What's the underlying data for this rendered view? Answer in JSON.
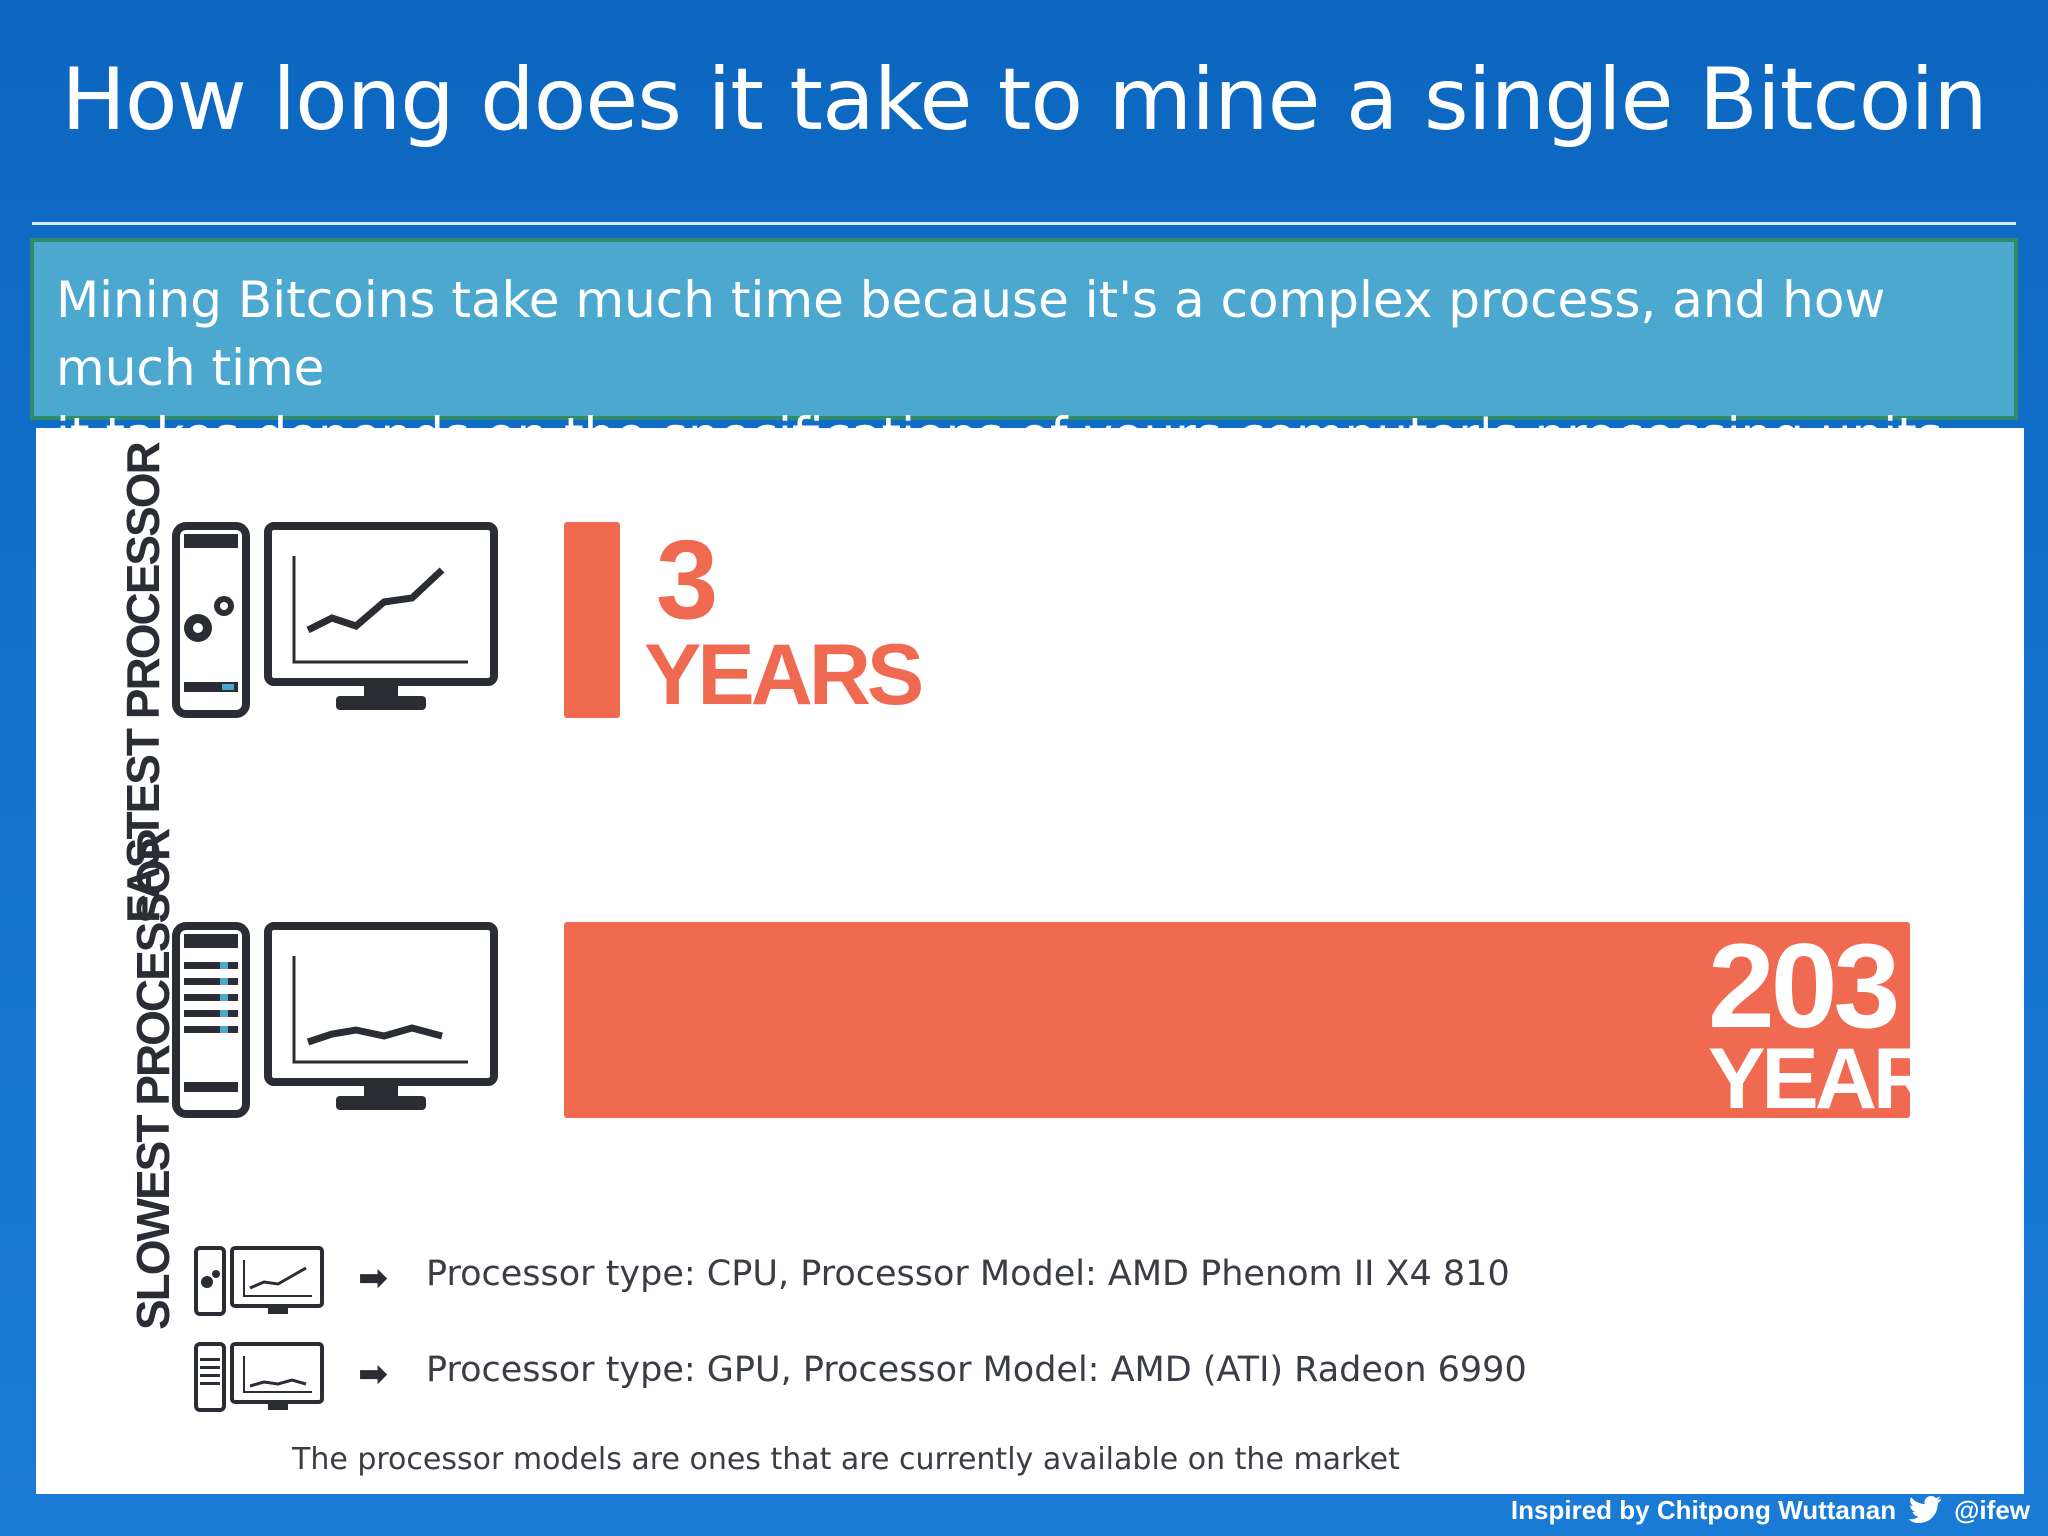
{
  "title": "How long does it take to mine a single Bitcoin",
  "callout_line1": "Mining Bitcoins take much time because it's a complex process, and how much time",
  "callout_line2": "it takes depends on the specifications of yours computer's processing units",
  "chart_data": {
    "type": "bar",
    "orientation": "horizontal",
    "categories": [
      "FASTEST PROCESSOR",
      "SLOWEST PROCESSOR"
    ],
    "values": [
      3,
      203
    ],
    "value_labels": [
      "3",
      "203"
    ],
    "unit_label": "YEARS",
    "xlim": [
      0,
      203
    ],
    "grid": false,
    "bar_color": "#f06a52"
  },
  "legend": [
    {
      "icon": "fast-computer-icon",
      "text": "Processor type: CPU, Processor Model: AMD Phenom II X4 810"
    },
    {
      "icon": "slow-computer-icon",
      "text": "Processor type: GPU, Processor Model: AMD (ATI) Radeon 6990"
    }
  ],
  "footnote": "The processor models are ones that are currently available on the market",
  "credit": {
    "text": "Inspired by Chitpong Wuttanan",
    "handle": "@ifew",
    "icon": "twitter-bird-icon"
  },
  "colors": {
    "background": "#1474cf",
    "callout": "#4ca8cf",
    "bar": "#f06a52",
    "dark": "#2a2d33"
  }
}
